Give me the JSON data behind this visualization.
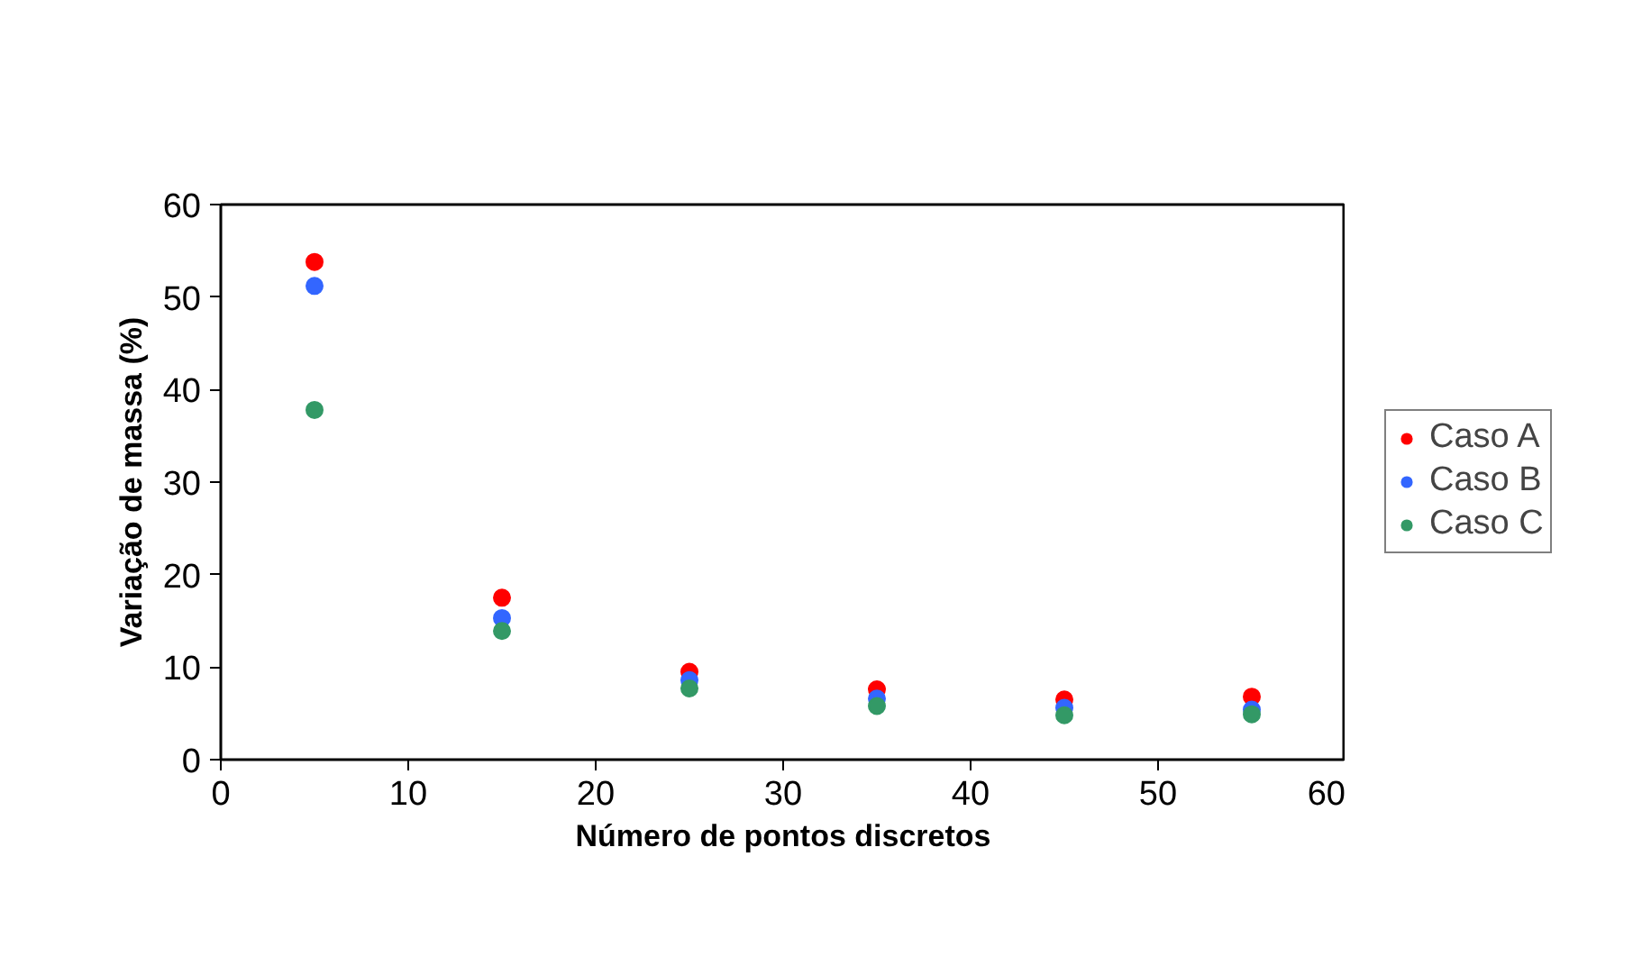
{
  "chart_data": {
    "type": "scatter",
    "xlabel": "Número de pontos discretos",
    "ylabel": "Variação de massa (%)",
    "x": [
      5,
      15,
      25,
      35,
      45,
      55
    ],
    "series": [
      {
        "name": "Caso A",
        "color": "#ff0000",
        "values": [
          53.8,
          17.5,
          9.5,
          7.6,
          6.5,
          6.8
        ]
      },
      {
        "name": "Caso B",
        "color": "#3366ff",
        "values": [
          51.2,
          15.3,
          8.6,
          6.6,
          5.6,
          5.4
        ]
      },
      {
        "name": "Caso C",
        "color": "#339966",
        "values": [
          37.8,
          13.9,
          7.7,
          5.8,
          4.8,
          4.9
        ]
      }
    ],
    "xlim": [
      0,
      60
    ],
    "ylim": [
      0,
      60
    ],
    "xticks": [
      0,
      10,
      20,
      30,
      40,
      50,
      60
    ],
    "yticks": [
      0,
      10,
      20,
      30,
      40,
      50,
      60
    ],
    "grid": false,
    "legend": "right",
    "marker": "circle"
  }
}
